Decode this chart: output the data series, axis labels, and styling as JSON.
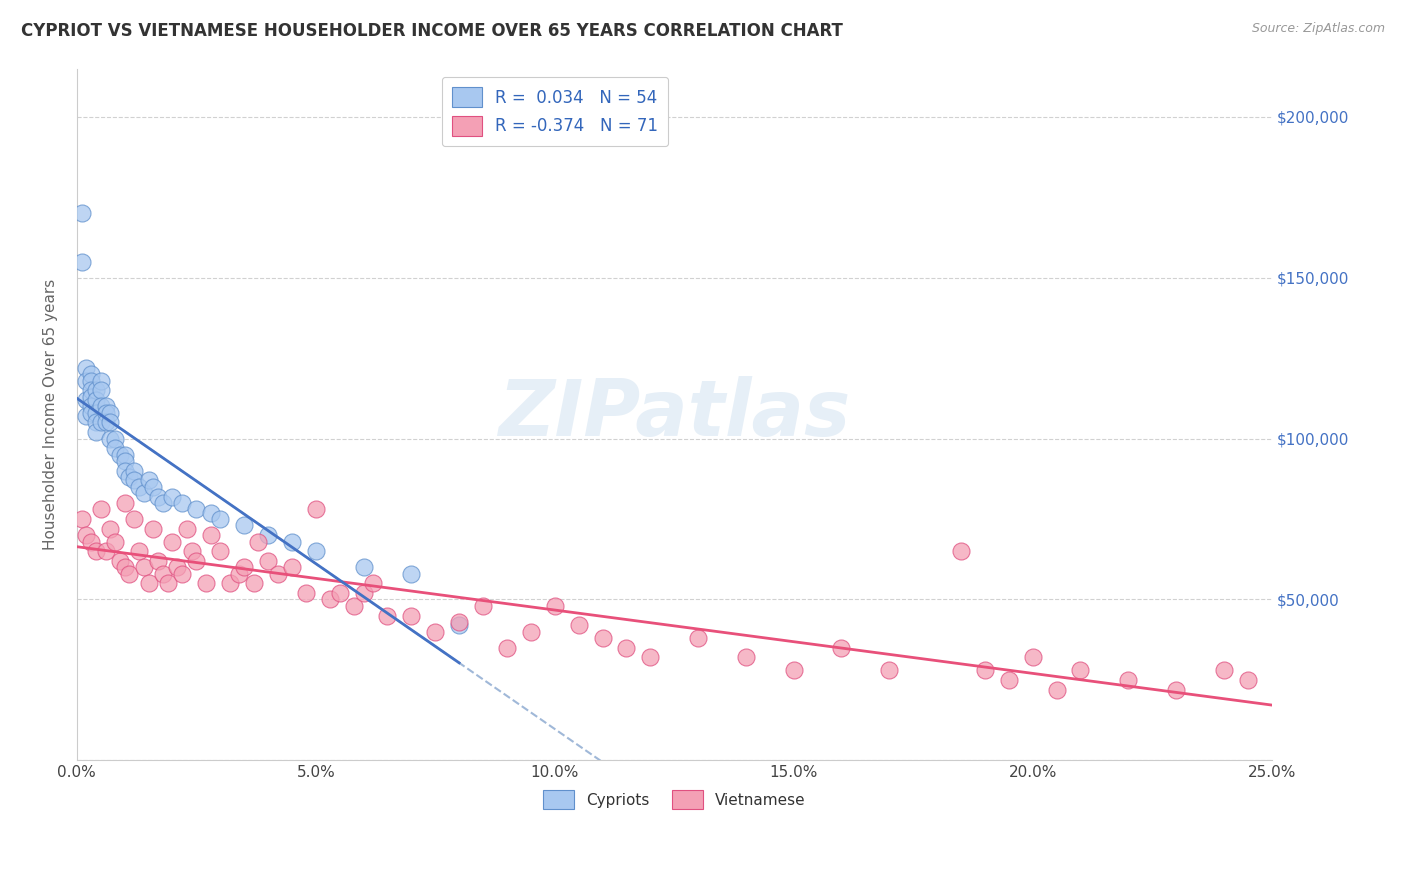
{
  "title": "CYPRIOT VS VIETNAMESE HOUSEHOLDER INCOME OVER 65 YEARS CORRELATION CHART",
  "source": "Source: ZipAtlas.com",
  "ylabel": "Householder Income Over 65 years",
  "xlabel_ticks": [
    "0.0%",
    "5.0%",
    "10.0%",
    "15.0%",
    "20.0%",
    "25.0%"
  ],
  "xlabel_vals": [
    0.0,
    0.05,
    0.1,
    0.15,
    0.2,
    0.25
  ],
  "ylabel_ticks": [
    0,
    50000,
    100000,
    150000,
    200000
  ],
  "xlim": [
    0.0,
    0.25
  ],
  "ylim": [
    0,
    215000
  ],
  "cypriot_R": 0.034,
  "cypriot_N": 54,
  "vietnamese_R": -0.374,
  "vietnamese_N": 71,
  "cypriot_color": "#A8C8F0",
  "vietnamese_color": "#F4A0B5",
  "cypriot_edge_color": "#6090CC",
  "vietnamese_edge_color": "#E05080",
  "cypriot_line_color": "#4472C4",
  "vietnamese_line_color": "#E8507A",
  "cypriot_dash_color": "#A0B8D8",
  "watermark": "ZIPatlas",
  "background_color": "#FFFFFF",
  "cypriot_x": [
    0.001,
    0.001,
    0.002,
    0.002,
    0.002,
    0.002,
    0.003,
    0.003,
    0.003,
    0.003,
    0.003,
    0.003,
    0.004,
    0.004,
    0.004,
    0.004,
    0.004,
    0.005,
    0.005,
    0.005,
    0.005,
    0.006,
    0.006,
    0.006,
    0.007,
    0.007,
    0.007,
    0.008,
    0.008,
    0.009,
    0.01,
    0.01,
    0.01,
    0.011,
    0.012,
    0.012,
    0.013,
    0.014,
    0.015,
    0.016,
    0.017,
    0.018,
    0.02,
    0.022,
    0.025,
    0.028,
    0.03,
    0.035,
    0.04,
    0.045,
    0.05,
    0.06,
    0.07,
    0.08
  ],
  "cypriot_y": [
    170000,
    155000,
    122000,
    118000,
    112000,
    107000,
    120000,
    118000,
    115000,
    113000,
    110000,
    108000,
    115000,
    112000,
    108000,
    105000,
    102000,
    118000,
    115000,
    110000,
    105000,
    110000,
    108000,
    105000,
    108000,
    105000,
    100000,
    100000,
    97000,
    95000,
    95000,
    93000,
    90000,
    88000,
    90000,
    87000,
    85000,
    83000,
    87000,
    85000,
    82000,
    80000,
    82000,
    80000,
    78000,
    77000,
    75000,
    73000,
    70000,
    68000,
    65000,
    60000,
    58000,
    42000
  ],
  "vietnamese_x": [
    0.001,
    0.002,
    0.003,
    0.004,
    0.005,
    0.006,
    0.007,
    0.008,
    0.009,
    0.01,
    0.01,
    0.011,
    0.012,
    0.013,
    0.014,
    0.015,
    0.016,
    0.017,
    0.018,
    0.019,
    0.02,
    0.021,
    0.022,
    0.023,
    0.024,
    0.025,
    0.027,
    0.028,
    0.03,
    0.032,
    0.034,
    0.035,
    0.037,
    0.038,
    0.04,
    0.042,
    0.045,
    0.048,
    0.05,
    0.053,
    0.055,
    0.058,
    0.06,
    0.062,
    0.065,
    0.07,
    0.075,
    0.08,
    0.085,
    0.09,
    0.095,
    0.1,
    0.105,
    0.11,
    0.115,
    0.12,
    0.13,
    0.14,
    0.15,
    0.16,
    0.17,
    0.185,
    0.19,
    0.195,
    0.2,
    0.205,
    0.21,
    0.22,
    0.23,
    0.24,
    0.245
  ],
  "vietnamese_y": [
    75000,
    70000,
    68000,
    65000,
    78000,
    65000,
    72000,
    68000,
    62000,
    80000,
    60000,
    58000,
    75000,
    65000,
    60000,
    55000,
    72000,
    62000,
    58000,
    55000,
    68000,
    60000,
    58000,
    72000,
    65000,
    62000,
    55000,
    70000,
    65000,
    55000,
    58000,
    60000,
    55000,
    68000,
    62000,
    58000,
    60000,
    52000,
    78000,
    50000,
    52000,
    48000,
    52000,
    55000,
    45000,
    45000,
    40000,
    43000,
    48000,
    35000,
    40000,
    48000,
    42000,
    38000,
    35000,
    32000,
    38000,
    32000,
    28000,
    35000,
    28000,
    65000,
    28000,
    25000,
    32000,
    22000,
    28000,
    25000,
    22000,
    28000,
    25000
  ]
}
